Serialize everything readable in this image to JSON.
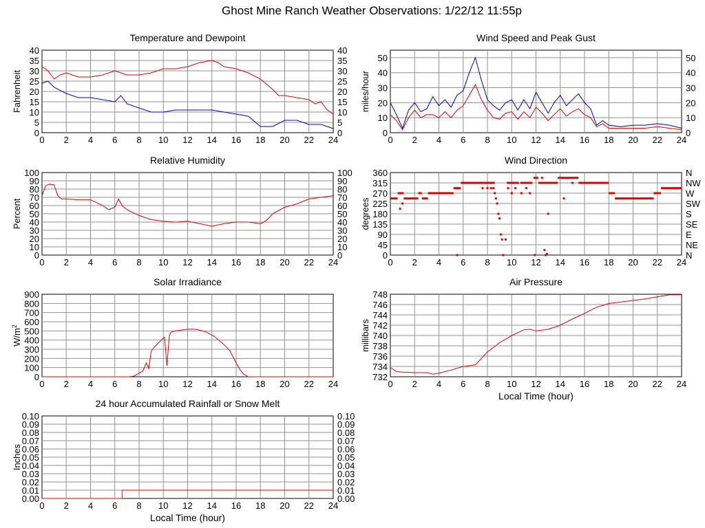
{
  "page_title": "Ghost Mine Ranch Weather Observations: 1/22/12 11:55p",
  "chart_data": [
    {
      "type": "line",
      "title": "Temperature and Dewpoint",
      "xlabel": "",
      "ylabel": "Fahrenheit",
      "xlim": [
        0,
        24
      ],
      "ylim": [
        0,
        40
      ],
      "xticks": [
        0,
        2,
        4,
        6,
        8,
        10,
        12,
        14,
        16,
        18,
        20,
        22,
        24
      ],
      "yticks": [
        0,
        5,
        10,
        15,
        20,
        25,
        30,
        35,
        40
      ],
      "right_yticks": [
        "0",
        "5",
        "10",
        "15",
        "20",
        "25",
        "30",
        "35",
        "40"
      ],
      "grid": true,
      "series": [
        {
          "color": "#dd0000",
          "x": [
            0,
            0.5,
            1,
            1.5,
            2,
            3,
            4,
            5,
            6,
            6.5,
            7,
            8,
            9,
            10,
            11,
            12,
            13,
            14,
            14.5,
            15,
            16,
            17,
            18,
            19,
            19.5,
            20,
            21,
            22,
            22.5,
            23,
            23.5,
            24
          ],
          "y": [
            32,
            30,
            26,
            28,
            29,
            27,
            27,
            28,
            30,
            29,
            28,
            28,
            29,
            31,
            31,
            32,
            34,
            35,
            34,
            32,
            31,
            29,
            26,
            21,
            18,
            18,
            17,
            16,
            14,
            15,
            11,
            9
          ]
        },
        {
          "color": "#0000bb",
          "x": [
            0,
            0.5,
            1,
            2,
            3,
            4,
            5,
            6,
            6.5,
            7,
            8,
            9,
            10,
            11,
            12,
            13,
            14,
            15,
            16,
            17,
            18,
            19,
            20,
            21,
            22,
            23,
            24
          ],
          "y": [
            24,
            25,
            22,
            19,
            17,
            17,
            16,
            15,
            18,
            14,
            12,
            10,
            10,
            11,
            11,
            11,
            11,
            10,
            9,
            8,
            3,
            3,
            6,
            6,
            4,
            4,
            2
          ]
        }
      ]
    },
    {
      "type": "line",
      "title": "Wind Speed and Peak Gust",
      "xlabel": "",
      "ylabel": "miles/hour",
      "xlim": [
        0,
        24
      ],
      "ylim": [
        0,
        55
      ],
      "xticks": [
        0,
        2,
        4,
        6,
        8,
        10,
        12,
        14,
        16,
        18,
        20,
        22,
        24
      ],
      "yticks": [
        0,
        10,
        20,
        30,
        40,
        50
      ],
      "right_yticks": [
        "0",
        "10",
        "20",
        "30",
        "40",
        "50"
      ],
      "grid": true,
      "series": [
        {
          "color": "#0000bb",
          "x": [
            0,
            0.5,
            1,
            1.5,
            2,
            2.5,
            3,
            3.5,
            4,
            4.5,
            5,
            5.5,
            6,
            6.5,
            7,
            7.5,
            8,
            8.5,
            9,
            9.5,
            10,
            10.5,
            11,
            11.5,
            12,
            12.5,
            13,
            13.5,
            14,
            14.5,
            15,
            15.5,
            16,
            16.5,
            17,
            17.5,
            18,
            19,
            20,
            21,
            22,
            23,
            24
          ],
          "y": [
            20,
            12,
            3,
            15,
            20,
            14,
            16,
            24,
            18,
            22,
            17,
            25,
            28,
            40,
            50,
            35,
            22,
            18,
            15,
            20,
            22,
            15,
            22,
            16,
            27,
            20,
            13,
            20,
            25,
            18,
            22,
            26,
            20,
            16,
            5,
            8,
            5,
            4,
            5,
            5,
            6,
            5,
            3
          ]
        },
        {
          "color": "#dd0000",
          "x": [
            0,
            0.5,
            1,
            1.5,
            2,
            2.5,
            3,
            3.5,
            4,
            4.5,
            5,
            5.5,
            6,
            6.5,
            7,
            7.5,
            8,
            8.5,
            9,
            9.5,
            10,
            10.5,
            11,
            11.5,
            12,
            12.5,
            13,
            13.5,
            14,
            14.5,
            15,
            15.5,
            16,
            16.5,
            17,
            17.5,
            18,
            19,
            20,
            21,
            22,
            23,
            24
          ],
          "y": [
            12,
            8,
            2,
            10,
            15,
            10,
            12,
            12,
            10,
            14,
            10,
            15,
            18,
            25,
            32,
            22,
            15,
            10,
            9,
            13,
            14,
            9,
            14,
            10,
            17,
            13,
            8,
            12,
            16,
            11,
            14,
            16,
            12,
            10,
            4,
            6,
            3,
            3,
            3,
            3,
            4,
            3,
            2
          ]
        }
      ]
    },
    {
      "type": "line",
      "title": "Relative Humidity",
      "xlabel": "",
      "ylabel": "Percent",
      "xlim": [
        0,
        24
      ],
      "ylim": [
        0,
        100
      ],
      "xticks": [
        0,
        2,
        4,
        6,
        8,
        10,
        12,
        14,
        16,
        18,
        20,
        22,
        24
      ],
      "yticks": [
        0,
        10,
        20,
        30,
        40,
        50,
        60,
        70,
        80,
        90,
        100
      ],
      "right_yticks": [
        "0",
        "10",
        "20",
        "30",
        "40",
        "50",
        "60",
        "70",
        "80",
        "90",
        "100"
      ],
      "grid": true,
      "series": [
        {
          "color": "#dd0000",
          "x": [
            0,
            0.3,
            0.6,
            1,
            1.3,
            1.6,
            2,
            3,
            4,
            5,
            5.5,
            6,
            6.3,
            6.6,
            7,
            8,
            9,
            10,
            11,
            12,
            13,
            14,
            15,
            16,
            17,
            18,
            18.5,
            19,
            20,
            21,
            22,
            23,
            24
          ],
          "y": [
            72,
            84,
            86,
            85,
            72,
            68,
            68,
            67,
            67,
            60,
            55,
            58,
            68,
            60,
            55,
            48,
            43,
            41,
            40,
            41,
            38,
            35,
            38,
            40,
            40,
            38,
            42,
            50,
            58,
            62,
            68,
            70,
            72
          ]
        }
      ]
    },
    {
      "type": "scatter",
      "title": "Wind Direction",
      "xlabel": "",
      "ylabel": "degrees",
      "xlim": [
        0,
        24
      ],
      "ylim": [
        0,
        360
      ],
      "xticks": [
        0,
        2,
        4,
        6,
        8,
        10,
        12,
        14,
        16,
        18,
        20,
        22,
        24
      ],
      "yticks": [
        0,
        45,
        90,
        135,
        180,
        225,
        270,
        315,
        360
      ],
      "right_yticks": [
        "N",
        "NE",
        "E",
        "SE",
        "S",
        "SW",
        "W",
        "NW",
        "N"
      ],
      "grid": true,
      "series": [
        {
          "color": "#dd0000",
          "segments": [
            [
              0,
              0.6,
              247
            ],
            [
              0.6,
              1.1,
              270
            ],
            [
              1.1,
              2.3,
              247
            ],
            [
              2.3,
              2.6,
              270
            ],
            [
              2.6,
              3.1,
              247
            ],
            [
              3.1,
              5.2,
              270
            ],
            [
              5.2,
              5.8,
              292
            ],
            [
              5.8,
              8.6,
              315
            ],
            [
              9.6,
              10.6,
              315
            ],
            [
              10.7,
              11.7,
              315
            ],
            [
              11.8,
              12.2,
              337
            ],
            [
              12.2,
              13.8,
              315
            ],
            [
              13.8,
              15.5,
              337
            ],
            [
              15.5,
              18.0,
              315
            ],
            [
              18.0,
              18.5,
              270
            ],
            [
              18.5,
              21.7,
              247
            ],
            [
              21.7,
              22.3,
              270
            ],
            [
              22.3,
              24,
              292
            ]
          ],
          "points": [
            [
              0.8,
              202
            ],
            [
              1.0,
              225
            ],
            [
              5.5,
              0
            ],
            [
              7.6,
              292
            ],
            [
              8.0,
              292
            ],
            [
              8.3,
              292
            ],
            [
              8.5,
              292
            ],
            [
              8.6,
              270
            ],
            [
              8.7,
              247
            ],
            [
              8.8,
              225
            ],
            [
              8.9,
              180
            ],
            [
              9.0,
              160
            ],
            [
              9.1,
              90
            ],
            [
              9.2,
              68
            ],
            [
              9.3,
              0
            ],
            [
              9.5,
              68
            ],
            [
              9.7,
              292
            ],
            [
              10.0,
              270
            ],
            [
              10.3,
              292
            ],
            [
              10.8,
              270
            ],
            [
              11.0,
              315
            ],
            [
              11.2,
              292
            ],
            [
              11.5,
              270
            ],
            [
              12.5,
              337
            ],
            [
              12.7,
              22
            ],
            [
              12.8,
              0
            ],
            [
              12.9,
              5
            ],
            [
              13.0,
              180
            ],
            [
              14.3,
              247
            ],
            [
              15.0,
              315
            ],
            [
              11.9,
              0
            ]
          ]
        }
      ]
    },
    {
      "type": "line",
      "title": "Solar Irradiance",
      "xlabel": "",
      "ylabel": "W/m",
      "ylabel_sup": "2",
      "xlim": [
        0,
        24
      ],
      "ylim": [
        0,
        900
      ],
      "xticks": [
        0,
        2,
        4,
        6,
        8,
        10,
        12,
        14,
        16,
        18,
        20,
        22,
        24
      ],
      "yticks": [
        0,
        100,
        200,
        300,
        400,
        500,
        600,
        700,
        800,
        900
      ],
      "grid": true,
      "series": [
        {
          "color": "#dd0000",
          "x": [
            0,
            7.2,
            7.6,
            8.0,
            8.3,
            8.6,
            8.8,
            9.0,
            9.3,
            9.6,
            9.9,
            10.1,
            10.3,
            10.4,
            10.5,
            10.6,
            10.8,
            11.2,
            11.8,
            12.3,
            12.8,
            13.5,
            14.2,
            15.0,
            15.5,
            16.0,
            16.3,
            16.6,
            17.0,
            24
          ],
          "y": [
            0,
            0,
            8,
            40,
            60,
            150,
            90,
            280,
            330,
            370,
            410,
            430,
            120,
            300,
            450,
            480,
            495,
            505,
            515,
            520,
            515,
            490,
            440,
            350,
            280,
            150,
            80,
            30,
            0,
            0
          ]
        }
      ]
    },
    {
      "type": "line",
      "title": "Air Pressure",
      "xlabel": "Local Time (hour)",
      "ylabel": "millibars",
      "xlim": [
        0,
        24
      ],
      "ylim": [
        732,
        748
      ],
      "xticks": [
        0,
        2,
        4,
        6,
        8,
        10,
        12,
        14,
        16,
        18,
        20,
        22,
        24
      ],
      "yticks": [
        732,
        734,
        736,
        738,
        740,
        742,
        744,
        746,
        748
      ],
      "grid": true,
      "series": [
        {
          "color": "#dd0000",
          "x": [
            0,
            0.5,
            1,
            2,
            3,
            3.5,
            4,
            5,
            6,
            7,
            8,
            9,
            9.5,
            10,
            11,
            11.5,
            12,
            13,
            14,
            15,
            16,
            17,
            18,
            19,
            20,
            21,
            22,
            23,
            24
          ],
          "y": [
            733.8,
            733.0,
            732.9,
            732.8,
            732.8,
            732.5,
            732.7,
            733.3,
            734.0,
            734.3,
            736.8,
            738.6,
            739.3,
            740.0,
            741.1,
            741.2,
            740.9,
            741.2,
            742.0,
            743.2,
            744.3,
            745.5,
            746.2,
            746.5,
            746.8,
            747.1,
            747.5,
            747.9,
            747.9
          ]
        }
      ]
    },
    {
      "type": "line",
      "title": "24 hour Accumulated Rainfall or Snow Melt",
      "xlabel": "Local Time (hour)",
      "ylabel": "Inches",
      "xlim": [
        0,
        24
      ],
      "ylim": [
        0,
        0.1
      ],
      "xticks": [
        0,
        2,
        4,
        6,
        8,
        10,
        12,
        14,
        16,
        18,
        20,
        22,
        24
      ],
      "yticks": [
        0,
        0.01,
        0.02,
        0.03,
        0.04,
        0.05,
        0.06,
        0.07,
        0.08,
        0.09,
        0.1
      ],
      "ytick_labels": [
        "0.00",
        "0.01",
        "0.02",
        "0.03",
        "0.04",
        "0.05",
        "0.06",
        "0.07",
        "0.08",
        "0.09",
        "0.10"
      ],
      "right_yticks": [
        "0.00",
        "0.01",
        "0.02",
        "0.03",
        "0.04",
        "0.05",
        "0.06",
        "0.07",
        "0.08",
        "0.09",
        "0.10"
      ],
      "grid": true,
      "series": [
        {
          "color": "#dd0000",
          "x": [
            0,
            6.6,
            6.6,
            24
          ],
          "y": [
            0,
            0,
            0.01,
            0.01
          ]
        }
      ]
    }
  ]
}
